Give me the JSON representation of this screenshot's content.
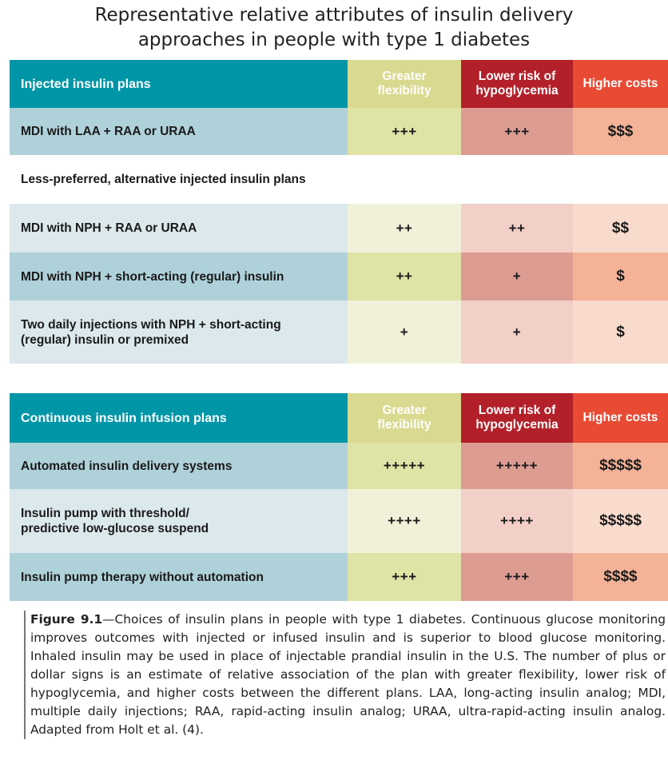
{
  "title_line1": "Representative relative attributes of insulin delivery",
  "title_line2": "approaches in people with type 1 diabetes",
  "colors": {
    "header_teal": "#0096a7",
    "flexibility": "#d9d990",
    "hypoglycemia": "#b3202a",
    "costs": "#e84a34"
  },
  "injected": {
    "header": {
      "label": "Injected insulin plans",
      "col1_line1": "Greater",
      "col1_line2": "flexibility",
      "col2_line1": "Lower risk of",
      "col2_line2": "hypoglycemia",
      "col3": "Higher costs"
    },
    "rows": [
      {
        "label": "MDI with LAA + RAA or URAA",
        "flexibility": "+++",
        "hypo": "+++",
        "cost": "$$$"
      }
    ],
    "subheading": "Less-preferred, alternative injected insulin plans",
    "alt_rows": [
      {
        "label": "MDI with NPH + RAA or URAA",
        "flexibility": "++",
        "hypo": "++",
        "cost": "$$"
      },
      {
        "label": "MDI with NPH + short-acting (regular) insulin",
        "flexibility": "++",
        "hypo": "+",
        "cost": "$"
      },
      {
        "label_line1": "Two daily injections with NPH + short-acting",
        "label_line2": "(regular) insulin or premixed",
        "flexibility": "+",
        "hypo": "+",
        "cost": "$"
      }
    ]
  },
  "infusion": {
    "header": {
      "label": "Continuous insulin infusion plans",
      "col1_line1": "Greater",
      "col1_line2": "flexibility",
      "col2_line1": "Lower risk of",
      "col2_line2": "hypoglycemia",
      "col3": "Higher costs"
    },
    "rows": [
      {
        "label": "Automated insulin delivery systems",
        "flexibility": "+++++",
        "hypo": "+++++",
        "cost": "$$$$$"
      },
      {
        "label_line1": "Insulin pump with threshold/",
        "label_line2": "predictive low-glucose suspend",
        "flexibility": "++++",
        "hypo": "++++",
        "cost": "$$$$$"
      },
      {
        "label": "Insulin pump therapy without automation",
        "flexibility": "+++",
        "hypo": "+++",
        "cost": "$$$$"
      }
    ]
  },
  "caption": {
    "figure_label": "Figure 9.1",
    "text": "—Choices of insulin plans in people with type 1 diabetes. Continuous glucose moni­toring improves outcomes with injected or infused insulin and is superior to blood glucose monitoring. Inhaled insulin may be used in place of injectable prandial insulin in the U.S. The number of plus or dollar signs is an estimate of relative association of the plan with greater flexibility, lower risk of hypoglycemia, and higher costs between the different plans. LAA, long-acting insulin analog; MDI, multiple daily injections; RAA, rapid-acting insulin analog; URAA, ultra-rapid-acting insulin analog. Adapted from Holt et al. (4)."
  }
}
